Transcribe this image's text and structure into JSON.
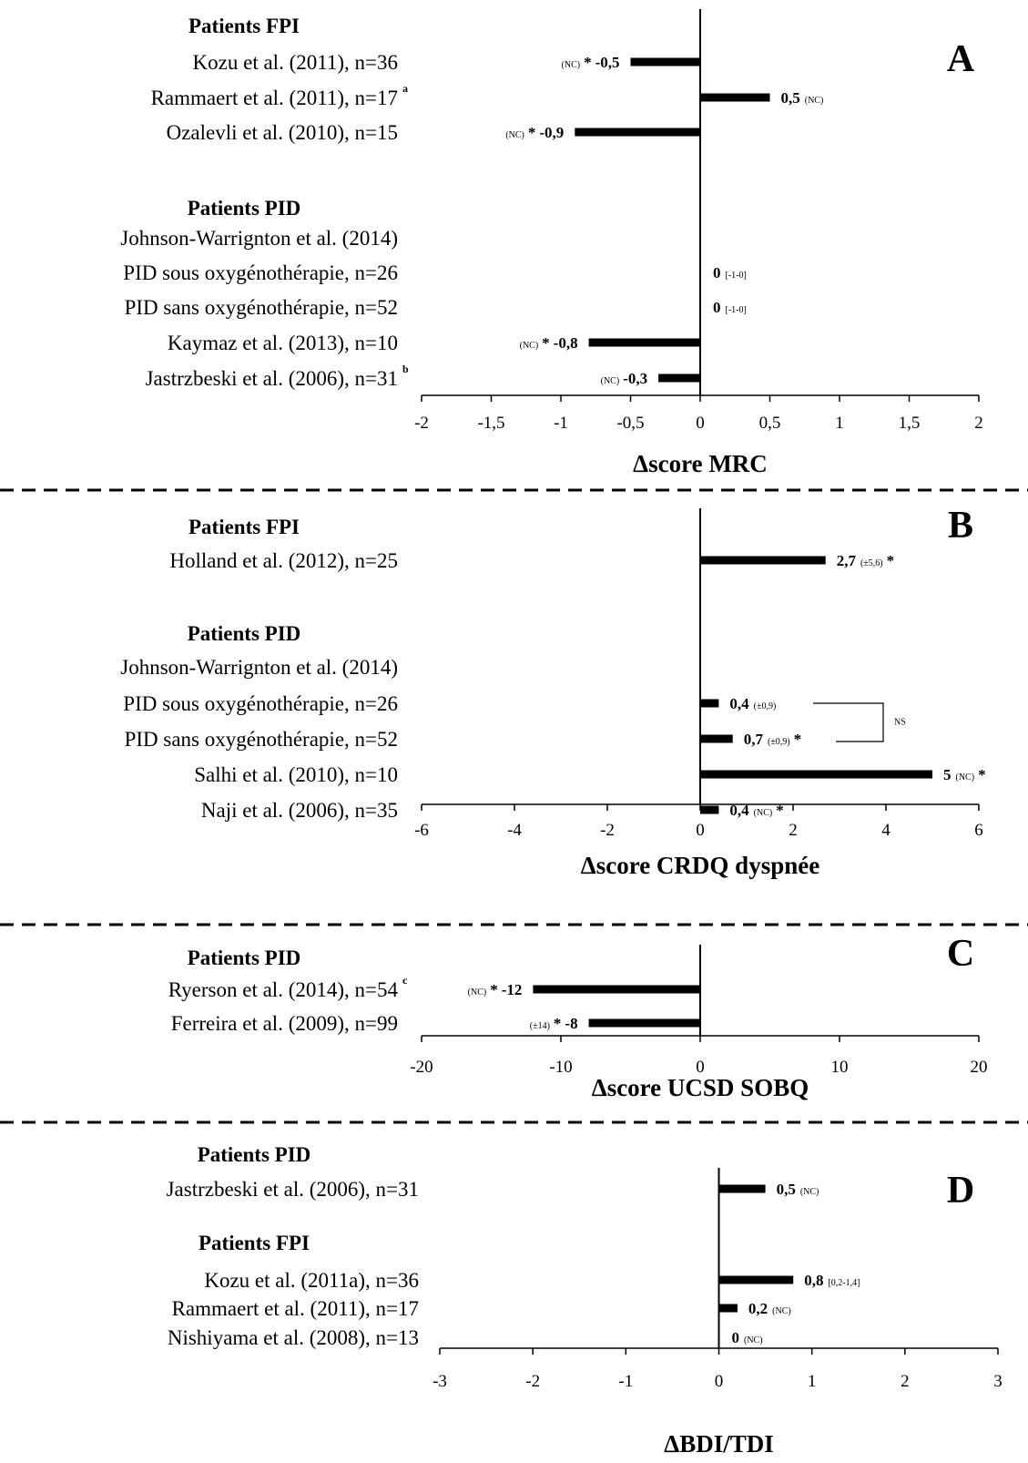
{
  "chart_data": [
    {
      "type": "bar",
      "orientation": "horizontal",
      "panel": "A",
      "xlabel": "Δscore MRC",
      "xlim": [
        -2,
        2
      ],
      "xticks": [
        "-2",
        "-1,5",
        "-1",
        "-0,5",
        "0",
        "0,5",
        "1",
        "1,5",
        "2"
      ],
      "grid": false,
      "rows": [
        {
          "kind": "header",
          "label": "Patients FPI"
        },
        {
          "kind": "bar",
          "label": "Kozu et al. (2011), n=36",
          "value": -0.5,
          "value_label": "-0,5",
          "annotation": "(NC)",
          "star": true
        },
        {
          "kind": "bar",
          "label": "Rammaert et al. (2011), n=17",
          "sup": "a",
          "value": 0.5,
          "value_label": "0,5",
          "annotation": "(NC)",
          "star": false
        },
        {
          "kind": "bar",
          "label": "Ozalevli et al. (2010), n=15",
          "value": -0.9,
          "value_label": "-0,9",
          "annotation": "(NC)",
          "star": true
        },
        {
          "kind": "spacer"
        },
        {
          "kind": "header",
          "label": "Patients PID"
        },
        {
          "kind": "text",
          "label": "Johnson-Warrignton et al. (2014)"
        },
        {
          "kind": "bar",
          "label": "PID sous oxygénothérapie, n=26",
          "value": 0,
          "value_label": "0",
          "annotation": "[-1-0]",
          "star": false
        },
        {
          "kind": "bar",
          "label": "PID sans oxygénothérapie, n=52",
          "value": 0,
          "value_label": "0",
          "annotation": "[-1-0]",
          "star": false
        },
        {
          "kind": "bar",
          "label": "Kaymaz et al. (2013), n=10",
          "value": -0.8,
          "value_label": "-0,8",
          "annotation": "(NC)",
          "star": true
        },
        {
          "kind": "bar",
          "label": "Jastrzbeski et al. (2006), n=31",
          "sup": "b",
          "value": -0.3,
          "value_label": "-0,3",
          "annotation": "(NC)",
          "star": false
        }
      ]
    },
    {
      "type": "bar",
      "orientation": "horizontal",
      "panel": "B",
      "xlabel": "Δscore CRDQ dyspnée",
      "xlim": [
        -6,
        6
      ],
      "xticks": [
        "-6",
        "-4",
        "-2",
        "0",
        "2",
        "4",
        "6"
      ],
      "grid": false,
      "rows": [
        {
          "kind": "header",
          "label": "Patients FPI"
        },
        {
          "kind": "bar",
          "label": "Holland et al. (2012), n=25",
          "value": 2.7,
          "value_label": "2,7",
          "annotation": "(±5,6)",
          "star": true
        },
        {
          "kind": "spacer"
        },
        {
          "kind": "header",
          "label": "Patients PID"
        },
        {
          "kind": "text",
          "label": "Johnson-Warrignton et al. (2014)"
        },
        {
          "kind": "bar",
          "label": "PID sous oxygénothérapie, n=26",
          "value": 0.4,
          "value_label": "0,4",
          "annotation": "(±0,9)",
          "star": false
        },
        {
          "kind": "bar",
          "label": "PID sans oxygénothérapie, n=52",
          "value": 0.7,
          "value_label": "0,7",
          "annotation": "(±0,9)",
          "star": true
        },
        {
          "kind": "bar",
          "label": "Salhi et al. (2010), n=10",
          "value": 5,
          "value_label": "5",
          "annotation": "(NC)",
          "star": true
        },
        {
          "kind": "bar",
          "label": "Naji et al. (2006), n=35",
          "value": 0.4,
          "value_label": "0,4",
          "annotation": "(NC)",
          "star": true
        }
      ],
      "comparison": {
        "label": "NS"
      }
    },
    {
      "type": "bar",
      "orientation": "horizontal",
      "panel": "C",
      "xlabel": "Δscore UCSD SOBQ",
      "xlim": [
        -20,
        20
      ],
      "xticks": [
        "-20",
        "-10",
        "0",
        "10",
        "20"
      ],
      "grid": false,
      "rows": [
        {
          "kind": "header",
          "label": "Patients PID"
        },
        {
          "kind": "bar",
          "label": "Ryerson et al. (2014), n=54",
          "sup": "c",
          "value": -12,
          "value_label": "-12",
          "annotation": "(NC)",
          "star": true
        },
        {
          "kind": "bar",
          "label": "Ferreira et al. (2009), n=99",
          "value": -8,
          "value_label": "-8",
          "annotation": "(±14)",
          "star": true
        }
      ]
    },
    {
      "type": "bar",
      "orientation": "horizontal",
      "panel": "D",
      "xlabel": "ΔBDI/TDI",
      "xlim": [
        -3,
        3
      ],
      "xticks": [
        "-3",
        "-2",
        "-1",
        "0",
        "1",
        "2",
        "3"
      ],
      "grid": false,
      "rows": [
        {
          "kind": "header",
          "label": "Patients PID"
        },
        {
          "kind": "bar",
          "label": "Jastrzbeski et al. (2006), n=31",
          "value": 0.5,
          "value_label": "0,5",
          "annotation": "(NC)",
          "star": false
        },
        {
          "kind": "spacer"
        },
        {
          "kind": "header",
          "label": "Patients FPI"
        },
        {
          "kind": "bar",
          "label": "Kozu et al. (2011a), n=36",
          "value": 0.8,
          "value_label": "0,8",
          "annotation": "[0,2-1,4]",
          "star": false
        },
        {
          "kind": "bar",
          "label": "Rammaert et al. (2011), n=17",
          "value": 0.2,
          "value_label": "0,2",
          "annotation": "(NC)",
          "star": false
        },
        {
          "kind": "bar",
          "label": "Nishiyama et al. (2008), n=13",
          "value": 0,
          "value_label": "0",
          "annotation": "(NC)",
          "star": false
        }
      ]
    }
  ]
}
